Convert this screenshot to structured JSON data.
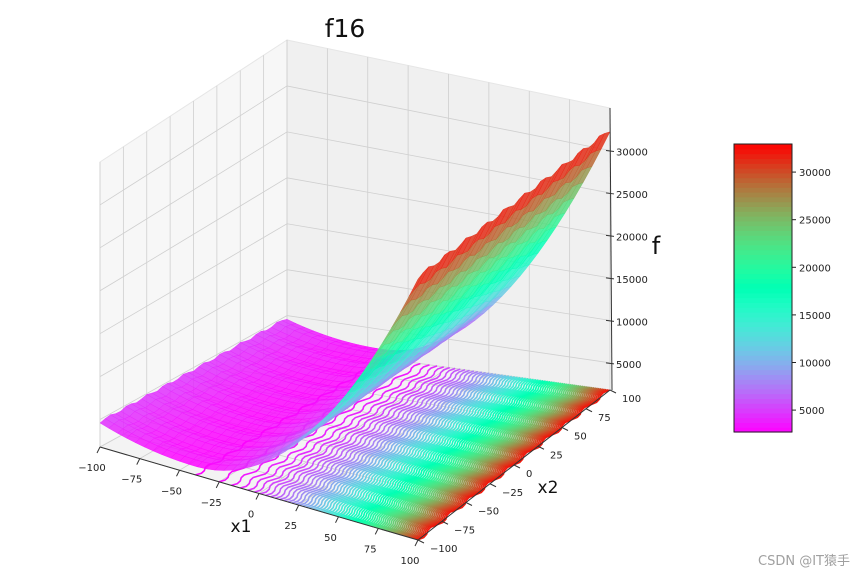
{
  "chart_data": {
    "type": "surface3d",
    "title": "f16",
    "xlabel": "x1",
    "ylabel": "x2",
    "zlabel": "f",
    "colormap": "rainbow",
    "xlim": [
      -100,
      100
    ],
    "ylim": [
      -100,
      100
    ],
    "zlim": [
      1800,
      35000
    ],
    "x_ticks": [
      "−100",
      "−75",
      "−50",
      "−25",
      "0",
      "25",
      "50",
      "75",
      "100"
    ],
    "y_ticks": [
      "−100",
      "−75",
      "−50",
      "−25",
      "0",
      "25",
      "50",
      "75",
      "100"
    ],
    "z_ticks": [
      "5000",
      "10000",
      "15000",
      "20000",
      "25000",
      "30000"
    ],
    "z_tick_values": [
      5000,
      10000,
      15000,
      20000,
      25000,
      30000
    ],
    "colorbar": {
      "range": [
        2700,
        32950
      ],
      "ticks": [
        "5000",
        "10000",
        "15000",
        "20000",
        "25000",
        "30000"
      ],
      "tick_values": [
        5000,
        10000,
        15000,
        20000,
        25000,
        30000
      ]
    },
    "surface_min": 2800,
    "surface_max": 32900,
    "floor_contours": true,
    "grid": true
  },
  "watermark": "CSDN @IT猿手"
}
